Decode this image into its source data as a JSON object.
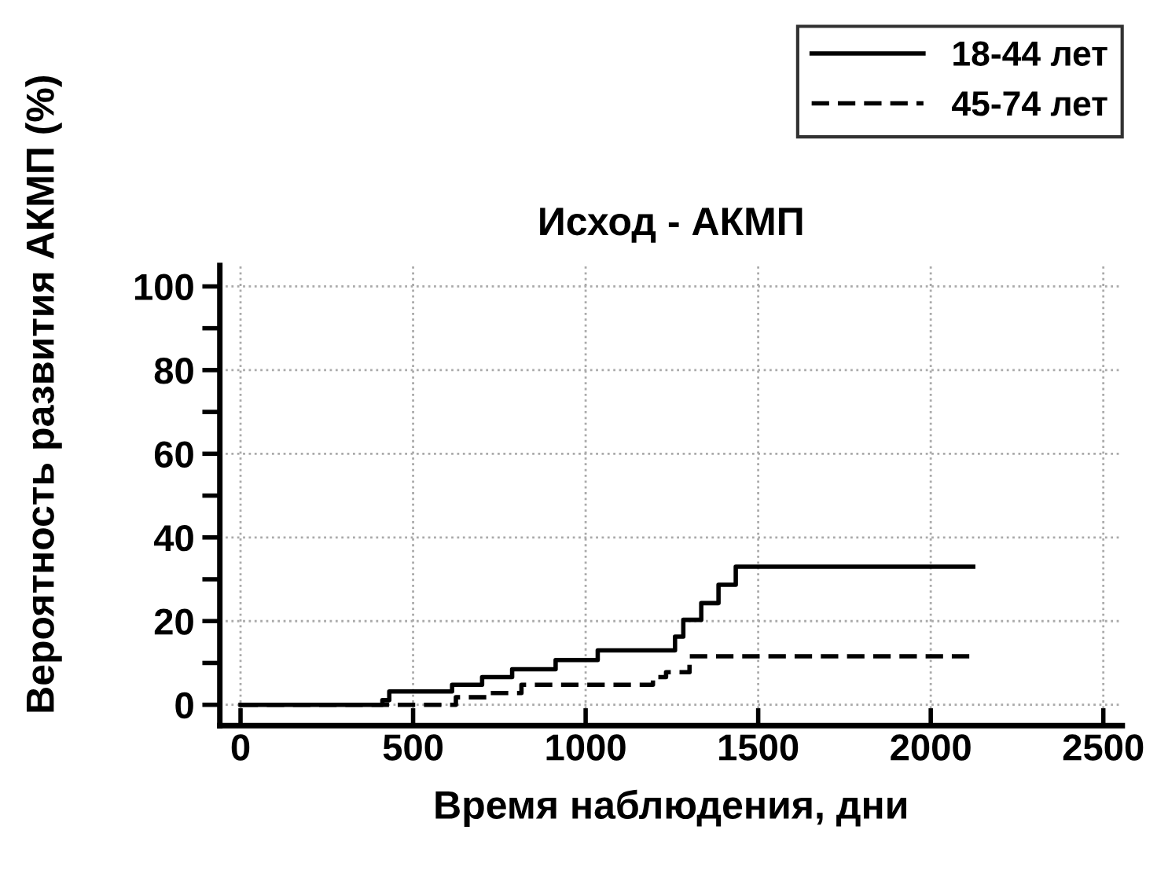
{
  "chart_data": {
    "type": "step",
    "title": "Исход - АКМП",
    "xlabel": "Время наблюдения, дни",
    "ylabel": "Вероятность развития АКМП (%)",
    "series": [
      {
        "name": "18-44 лет",
        "color": "#000000",
        "line_style": "solid",
        "x": [
          0,
          411,
          431,
          613,
          700,
          787,
          913,
          1035,
          1259,
          1283,
          1335,
          1385,
          1435,
          2123
        ],
        "values": [
          0,
          1.1,
          3.2,
          4.8,
          6.6,
          8.5,
          10.7,
          13,
          16.3,
          20.3,
          24.3,
          28.7,
          33,
          33
        ]
      },
      {
        "name": "45-74 лет",
        "color": "#000000",
        "line_style": "dashed",
        "x": [
          0,
          624,
          723,
          814,
          1195,
          1233,
          1301,
          2123
        ],
        "values": [
          0,
          1.8,
          2.8,
          4.8,
          6.6,
          7.8,
          11.6,
          11.6
        ]
      }
    ],
    "xlim": [
      -60,
      2555
    ],
    "ylim": [
      -5,
      105
    ],
    "xticks": [
      0,
      500,
      1000,
      1500,
      2000,
      2500
    ],
    "yticks": [
      0,
      {
        "value": 10,
        "label": null
      },
      20,
      {
        "value": 30,
        "label": null
      },
      40,
      {
        "value": 50,
        "label": null
      },
      60,
      {
        "value": 70,
        "label": null
      },
      80,
      {
        "value": 90,
        "label": null
      },
      100
    ],
    "grid": true,
    "legend": "top right"
  }
}
